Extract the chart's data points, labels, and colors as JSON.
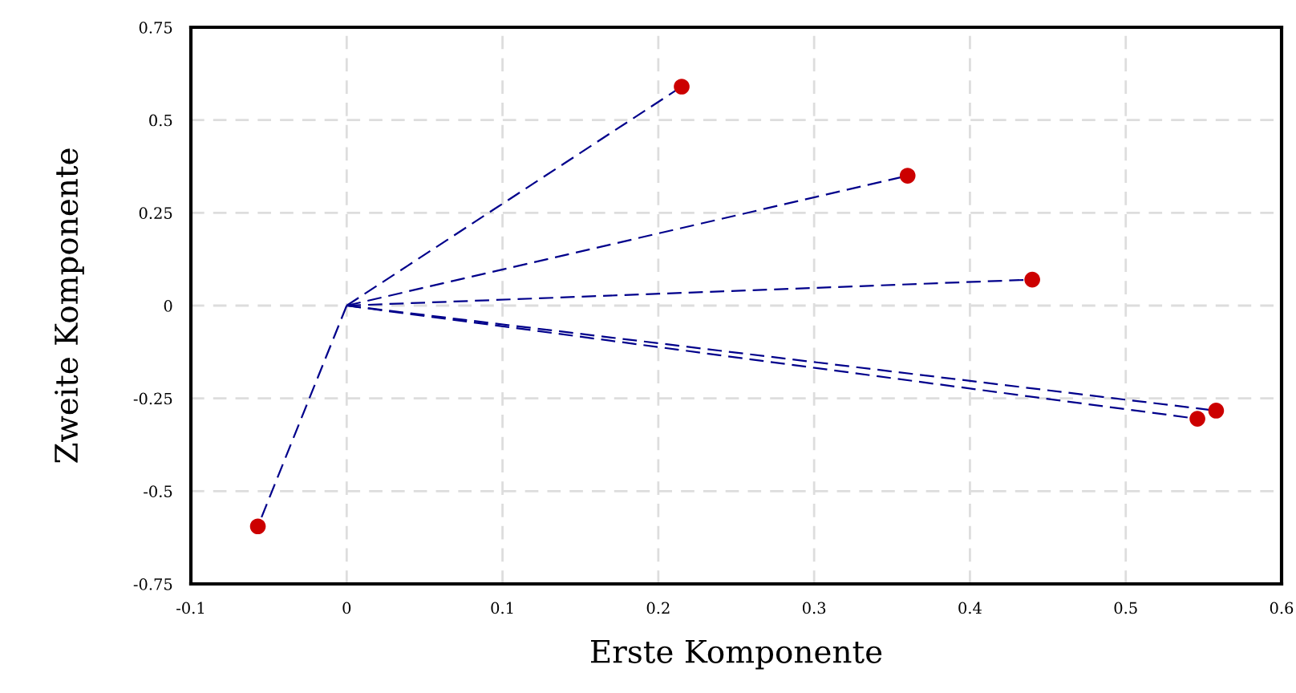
{
  "chart_data": {
    "type": "scatter",
    "xlabel": "Erste Komponente",
    "ylabel": "Zweite Komponente",
    "xlim": [
      -0.1,
      0.6
    ],
    "ylim": [
      -0.75,
      0.75
    ],
    "xticks": [
      -0.1,
      0,
      0.1,
      0.2,
      0.3,
      0.4,
      0.5,
      0.6
    ],
    "yticks": [
      -0.75,
      -0.5,
      -0.25,
      0,
      0.25,
      0.5,
      0.75
    ],
    "grid": true,
    "series": [
      {
        "type": "line",
        "color": "#00008b",
        "line_style": "dashed",
        "marker": "none",
        "x": [
          0,
          0.215
        ],
        "values": [
          0,
          0.59
        ]
      },
      {
        "type": "line",
        "color": "#00008b",
        "line_style": "dashed",
        "marker": "none",
        "x": [
          0,
          0.36
        ],
        "values": [
          0,
          0.35
        ]
      },
      {
        "type": "line",
        "color": "#00008b",
        "line_style": "dashed",
        "marker": "none",
        "x": [
          0,
          0.44
        ],
        "values": [
          0,
          0.07
        ]
      },
      {
        "type": "line",
        "color": "#00008b",
        "line_style": "dashed",
        "marker": "none",
        "x": [
          0,
          0.546
        ],
        "values": [
          0,
          -0.305
        ]
      },
      {
        "type": "line",
        "color": "#00008b",
        "line_style": "dashed",
        "marker": "none",
        "x": [
          0,
          0.558
        ],
        "values": [
          0,
          -0.283
        ]
      },
      {
        "type": "line",
        "color": "#00008b",
        "line_style": "dashed",
        "marker": "none",
        "x": [
          0,
          -0.057
        ],
        "values": [
          0,
          -0.595
        ]
      },
      {
        "color": "#cc0000",
        "marker": "circle",
        "x": [
          0.215,
          0.36,
          0.44,
          0.546,
          0.558,
          -0.057
        ],
        "values": [
          0.59,
          0.35,
          0.07,
          -0.305,
          -0.283,
          -0.595
        ]
      }
    ]
  }
}
